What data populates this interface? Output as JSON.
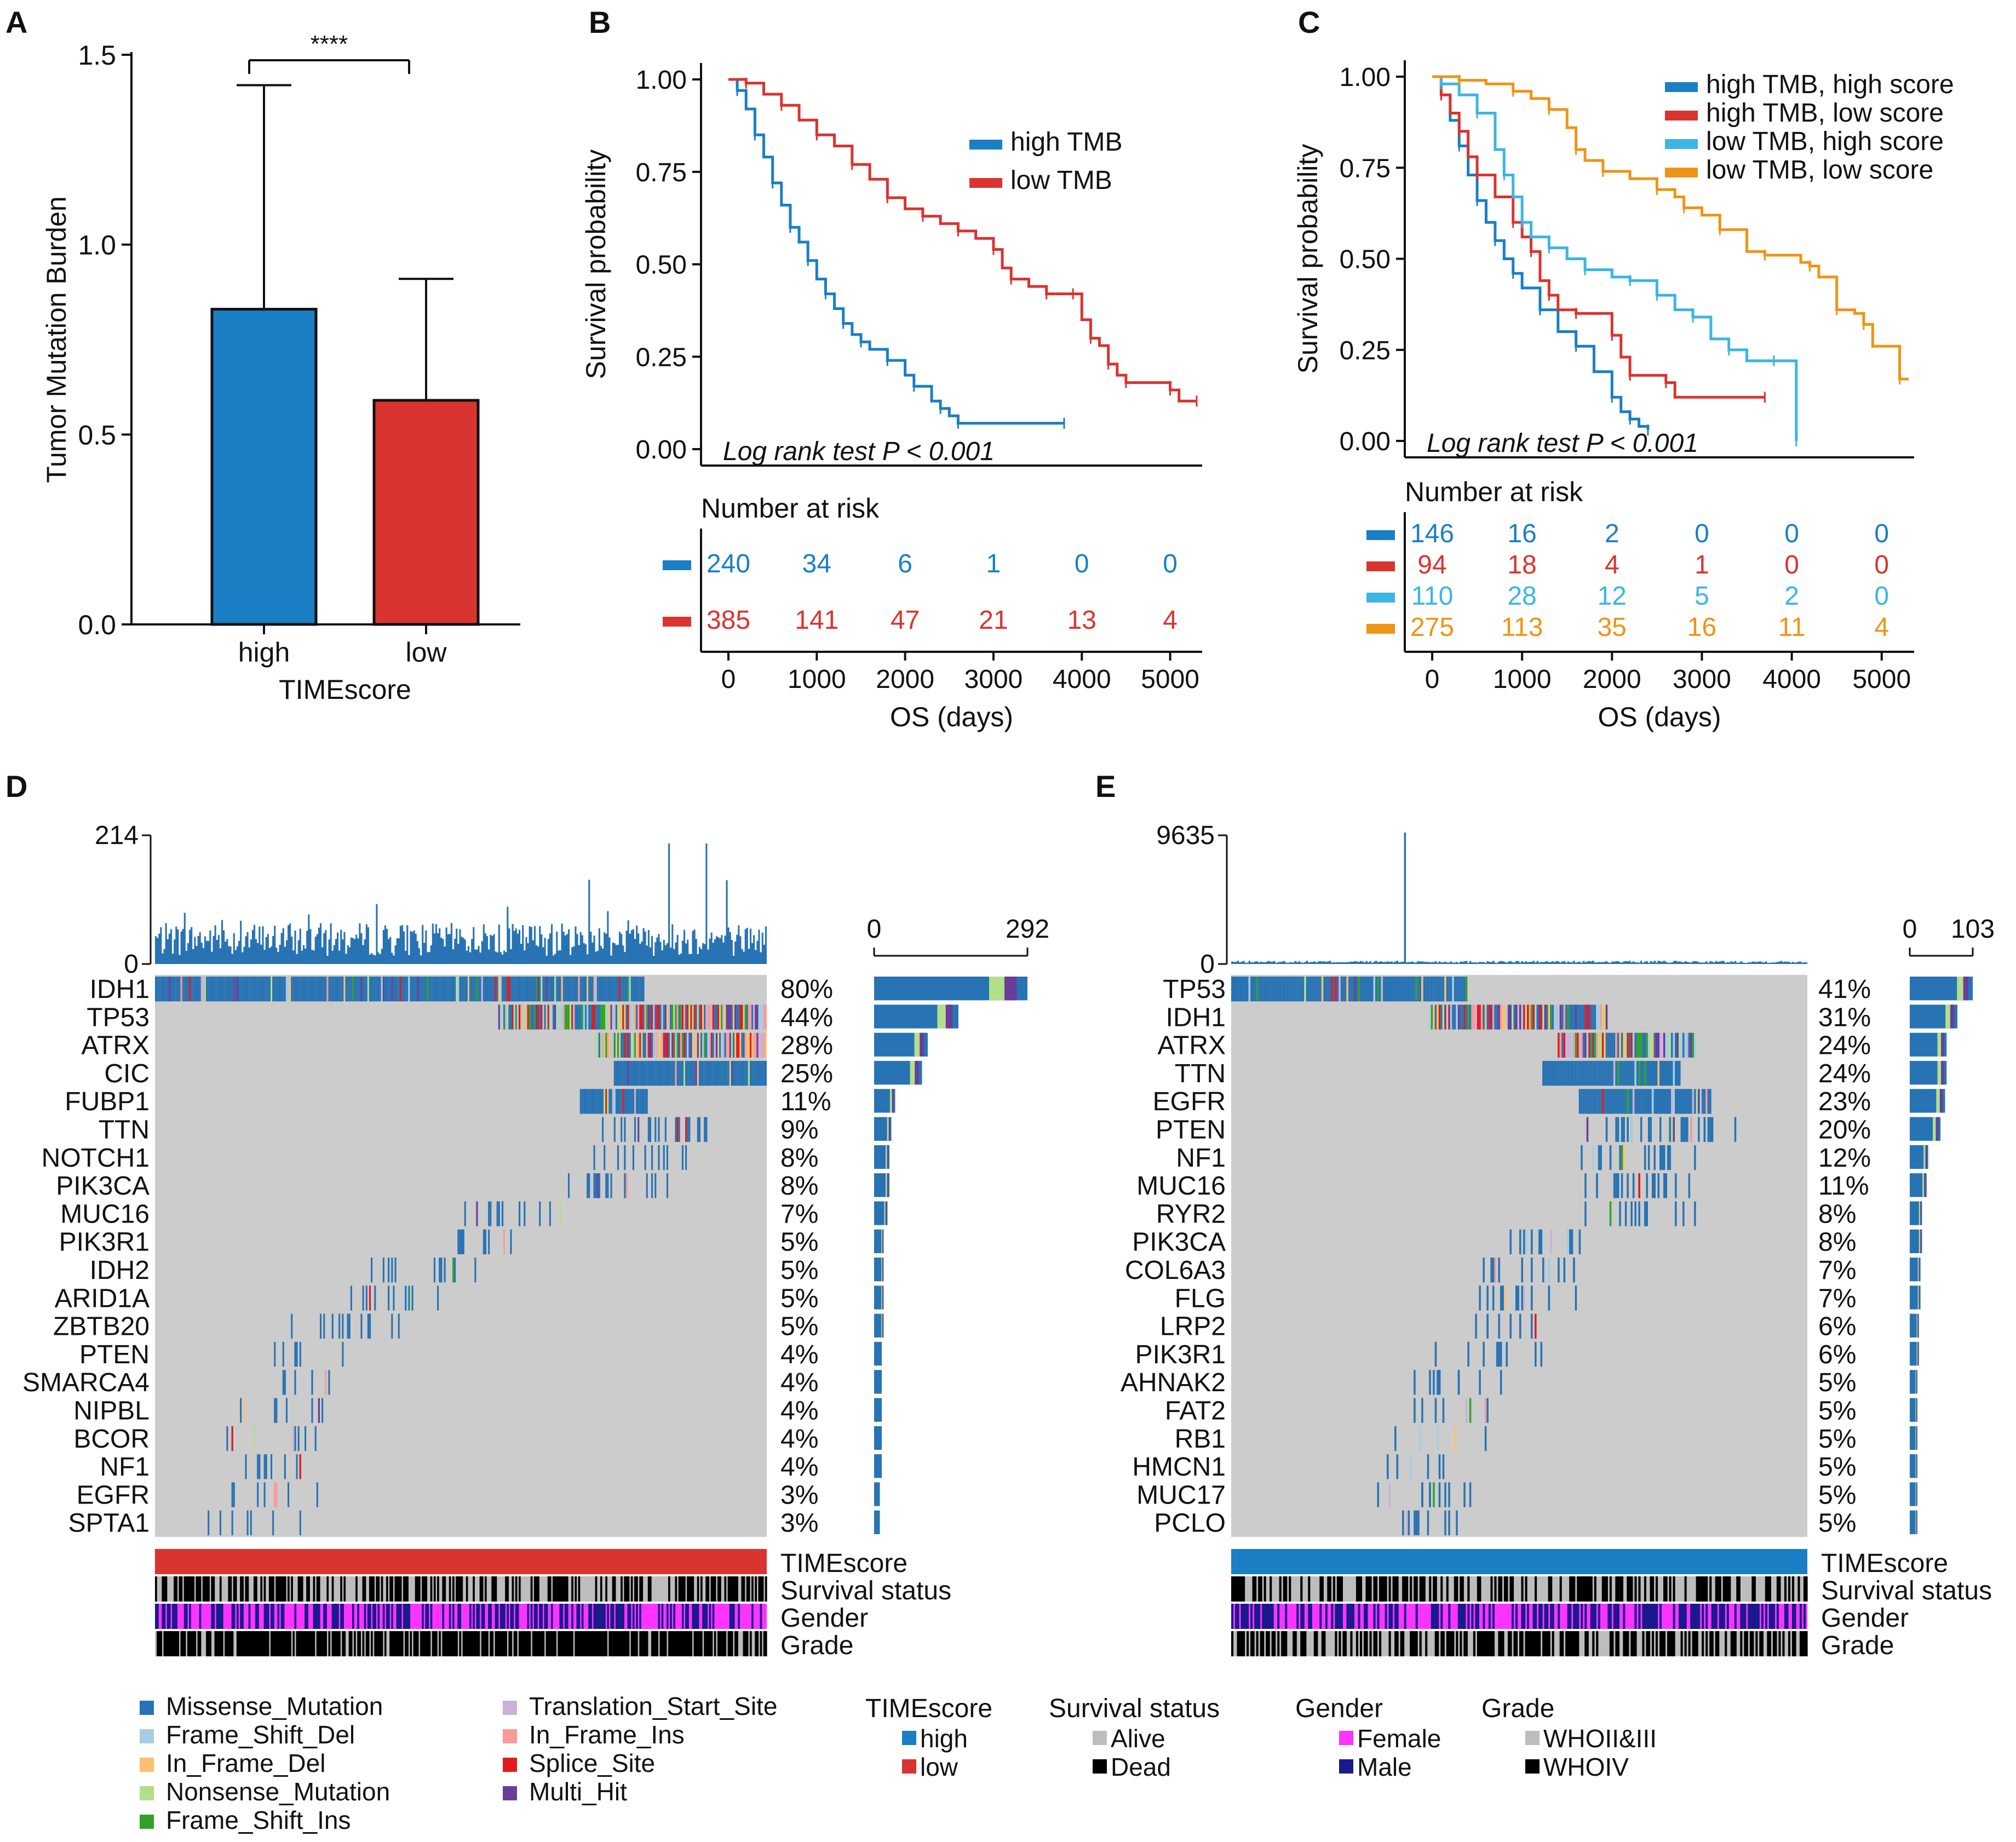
{
  "panels": {
    "A": "A",
    "B": "B",
    "C": "C",
    "D": "D",
    "E": "E"
  },
  "colors": {
    "high": "#1a7fc4",
    "low": "#d9342f",
    "lowhigh": "#3bb5e4",
    "lowlow": "#ef9416",
    "grey": "#cccccc",
    "missense": "#2873b3",
    "frame_shift_del": "#a6cee3",
    "in_frame_del": "#fdbf6f",
    "nonsense": "#b2df8a",
    "frame_shift_ins": "#33a02c",
    "translation_start": "#cab2d6",
    "in_frame_ins": "#fb9a99",
    "splice": "#e31a1c",
    "multi_hit": "#6a3d9a",
    "female": "#ff33ff",
    "male": "#1a1a8c",
    "alive": "#bdbdbd",
    "dead": "#000000"
  },
  "chart_data": [
    {
      "id": "A",
      "type": "bar",
      "ylabel": "Tumor Mutation Burden",
      "xlabel": "TIMEscore",
      "ylim": [
        0,
        1.5
      ],
      "yticks": [
        "0.0",
        "0.5",
        "1.0",
        "1.5"
      ],
      "ytick_values": [
        0,
        0.5,
        1.0,
        1.5
      ],
      "categories": [
        "high",
        "low"
      ],
      "values": [
        0.83,
        0.59
      ],
      "error_upper": [
        1.42,
        0.91
      ],
      "significance": "****"
    },
    {
      "id": "B",
      "type": "line",
      "ylabel": "Survival probability",
      "xlabel": "OS (days)",
      "xlim": [
        0,
        5300
      ],
      "ylim": [
        0,
        1
      ],
      "xticks": [
        "0",
        "1000",
        "2000",
        "3000",
        "4000",
        "5000"
      ],
      "xtick_values": [
        0,
        1000,
        2000,
        3000,
        4000,
        5000
      ],
      "yticks": [
        "0.00",
        "0.25",
        "0.50",
        "0.75",
        "1.00"
      ],
      "ytick_values": [
        0,
        0.25,
        0.5,
        0.75,
        1
      ],
      "annotation": "Log rank test P < 0.001",
      "series": [
        {
          "name": "high TMB",
          "color": "#1a7fc4",
          "points": [
            [
              0,
              1
            ],
            [
              100,
              0.97
            ],
            [
              200,
              0.92
            ],
            [
              300,
              0.85
            ],
            [
              400,
              0.79
            ],
            [
              500,
              0.72
            ],
            [
              600,
              0.66
            ],
            [
              700,
              0.6
            ],
            [
              800,
              0.56
            ],
            [
              900,
              0.51
            ],
            [
              1000,
              0.46
            ],
            [
              1100,
              0.42
            ],
            [
              1200,
              0.38
            ],
            [
              1300,
              0.34
            ],
            [
              1400,
              0.31
            ],
            [
              1500,
              0.29
            ],
            [
              1600,
              0.27
            ],
            [
              1800,
              0.24
            ],
            [
              2000,
              0.2
            ],
            [
              2100,
              0.17
            ],
            [
              2300,
              0.13
            ],
            [
              2400,
              0.11
            ],
            [
              2500,
              0.09
            ],
            [
              2600,
              0.07
            ],
            [
              3000,
              0.07
            ],
            [
              3800,
              0.07
            ]
          ]
        },
        {
          "name": "low TMB",
          "color": "#d9342f",
          "points": [
            [
              0,
              1
            ],
            [
              200,
              0.99
            ],
            [
              400,
              0.96
            ],
            [
              600,
              0.93
            ],
            [
              800,
              0.89
            ],
            [
              1000,
              0.85
            ],
            [
              1200,
              0.82
            ],
            [
              1400,
              0.77
            ],
            [
              1600,
              0.73
            ],
            [
              1800,
              0.68
            ],
            [
              2000,
              0.65
            ],
            [
              2200,
              0.63
            ],
            [
              2400,
              0.61
            ],
            [
              2600,
              0.59
            ],
            [
              2800,
              0.57
            ],
            [
              3000,
              0.54
            ],
            [
              3100,
              0.49
            ],
            [
              3200,
              0.46
            ],
            [
              3400,
              0.44
            ],
            [
              3600,
              0.42
            ],
            [
              3800,
              0.42
            ],
            [
              3900,
              0.42
            ],
            [
              4000,
              0.35
            ],
            [
              4100,
              0.3
            ],
            [
              4200,
              0.28
            ],
            [
              4300,
              0.23
            ],
            [
              4400,
              0.2
            ],
            [
              4500,
              0.18
            ],
            [
              4700,
              0.18
            ],
            [
              5000,
              0.16
            ],
            [
              5100,
              0.13
            ],
            [
              5300,
              0.13
            ]
          ]
        }
      ],
      "risk_title": "Number at risk",
      "risk": [
        {
          "color": "#1a7fc4",
          "values": [
            "240",
            "34",
            "6",
            "1",
            "0",
            "0"
          ]
        },
        {
          "color": "#d9342f",
          "values": [
            "385",
            "141",
            "47",
            "21",
            "13",
            "4"
          ]
        }
      ]
    },
    {
      "id": "C",
      "type": "line",
      "ylabel": "Survival probability",
      "xlabel": "OS (days)",
      "xlim": [
        0,
        5300
      ],
      "ylim": [
        0,
        1
      ],
      "xticks": [
        "0",
        "1000",
        "2000",
        "3000",
        "4000",
        "5000"
      ],
      "xtick_values": [
        0,
        1000,
        2000,
        3000,
        4000,
        5000
      ],
      "yticks": [
        "0.00",
        "0.25",
        "0.50",
        "0.75",
        "1.00"
      ],
      "ytick_values": [
        0,
        0.25,
        0.5,
        0.75,
        1
      ],
      "annotation": "Log rank test P < 0.001",
      "series": [
        {
          "name": "high TMB, high score",
          "color": "#1a7fc4",
          "points": [
            [
              0,
              1
            ],
            [
              100,
              0.95
            ],
            [
              200,
              0.88
            ],
            [
              300,
              0.81
            ],
            [
              400,
              0.73
            ],
            [
              500,
              0.66
            ],
            [
              600,
              0.6
            ],
            [
              700,
              0.55
            ],
            [
              800,
              0.5
            ],
            [
              900,
              0.46
            ],
            [
              1000,
              0.42
            ],
            [
              1200,
              0.36
            ],
            [
              1400,
              0.3
            ],
            [
              1600,
              0.26
            ],
            [
              1800,
              0.19
            ],
            [
              2000,
              0.12
            ],
            [
              2100,
              0.08
            ],
            [
              2200,
              0.06
            ],
            [
              2300,
              0.04
            ],
            [
              2400,
              0.03
            ]
          ]
        },
        {
          "name": "high TMB, low score",
          "color": "#d9342f",
          "points": [
            [
              0,
              1
            ],
            [
              100,
              0.95
            ],
            [
              200,
              0.9
            ],
            [
              300,
              0.85
            ],
            [
              400,
              0.78
            ],
            [
              500,
              0.73
            ],
            [
              700,
              0.67
            ],
            [
              900,
              0.6
            ],
            [
              1000,
              0.56
            ],
            [
              1100,
              0.52
            ],
            [
              1200,
              0.44
            ],
            [
              1300,
              0.4
            ],
            [
              1400,
              0.36
            ],
            [
              1600,
              0.35
            ],
            [
              1900,
              0.35
            ],
            [
              2000,
              0.29
            ],
            [
              2100,
              0.23
            ],
            [
              2200,
              0.18
            ],
            [
              2500,
              0.18
            ],
            [
              2600,
              0.16
            ],
            [
              2700,
              0.12
            ],
            [
              3700,
              0.12
            ]
          ]
        },
        {
          "name": "low TMB, high score",
          "color": "#3bb5e4",
          "points": [
            [
              0,
              1
            ],
            [
              100,
              0.98
            ],
            [
              300,
              0.95
            ],
            [
              500,
              0.9
            ],
            [
              700,
              0.8
            ],
            [
              800,
              0.73
            ],
            [
              900,
              0.67
            ],
            [
              1000,
              0.6
            ],
            [
              1100,
              0.56
            ],
            [
              1300,
              0.53
            ],
            [
              1500,
              0.5
            ],
            [
              1700,
              0.47
            ],
            [
              2000,
              0.45
            ],
            [
              2200,
              0.44
            ],
            [
              2400,
              0.44
            ],
            [
              2500,
              0.4
            ],
            [
              2700,
              0.36
            ],
            [
              2900,
              0.34
            ],
            [
              3100,
              0.28
            ],
            [
              3300,
              0.25
            ],
            [
              3500,
              0.22
            ],
            [
              3800,
              0.22
            ],
            [
              4000,
              0.22
            ],
            [
              4050,
              0
            ]
          ]
        },
        {
          "name": "low TMB, low score",
          "color": "#ef9416",
          "points": [
            [
              0,
              1
            ],
            [
              300,
              0.99
            ],
            [
              600,
              0.98
            ],
            [
              900,
              0.96
            ],
            [
              1100,
              0.94
            ],
            [
              1300,
              0.91
            ],
            [
              1500,
              0.86
            ],
            [
              1600,
              0.8
            ],
            [
              1700,
              0.77
            ],
            [
              1900,
              0.74
            ],
            [
              2200,
              0.72
            ],
            [
              2500,
              0.69
            ],
            [
              2700,
              0.67
            ],
            [
              2800,
              0.64
            ],
            [
              3000,
              0.62
            ],
            [
              3200,
              0.58
            ],
            [
              3500,
              0.52
            ],
            [
              3700,
              0.51
            ],
            [
              4100,
              0.49
            ],
            [
              4200,
              0.48
            ],
            [
              4300,
              0.45
            ],
            [
              4500,
              0.36
            ],
            [
              4700,
              0.35
            ],
            [
              4800,
              0.32
            ],
            [
              4900,
              0.26
            ],
            [
              5200,
              0.17
            ],
            [
              5300,
              0.17
            ]
          ]
        }
      ],
      "risk_title": "Number at risk",
      "risk": [
        {
          "color": "#1a7fc4",
          "values": [
            "146",
            "16",
            "2",
            "0",
            "0",
            "0"
          ]
        },
        {
          "color": "#d9342f",
          "values": [
            "94",
            "18",
            "4",
            "1",
            "0",
            "0"
          ]
        },
        {
          "color": "#3bb5e4",
          "values": [
            "110",
            "28",
            "12",
            "5",
            "2",
            "0"
          ]
        },
        {
          "color": "#ef9416",
          "values": [
            "275",
            "113",
            "35",
            "16",
            "11",
            "4"
          ]
        }
      ]
    },
    {
      "id": "D",
      "type": "heatmap",
      "tmb_max": "214",
      "tmb_min": "0",
      "bar_min": "0",
      "bar_max": "292",
      "timescore_color": "#d9342f",
      "genes": [
        "IDH1",
        "TP53",
        "ATRX",
        "CIC",
        "FUBP1",
        "TTN",
        "NOTCH1",
        "PIK3CA",
        "MUC16",
        "PIK3R1",
        "IDH2",
        "ARID1A",
        "ZBTB20",
        "PTEN",
        "SMARCA4",
        "NIPBL",
        "BCOR",
        "NF1",
        "EGFR",
        "SPTA1"
      ],
      "percents": [
        "80%",
        "44%",
        "28%",
        "25%",
        "11%",
        "9%",
        "8%",
        "8%",
        "7%",
        "5%",
        "5%",
        "5%",
        "5%",
        "4%",
        "4%",
        "4%",
        "4%",
        "4%",
        "3%",
        "3%"
      ],
      "freq": [
        80,
        44,
        28,
        25,
        11,
        9,
        8,
        8,
        7,
        5,
        5,
        5,
        5,
        4,
        4,
        4,
        4,
        4,
        3,
        3
      ],
      "tracks": [
        "TIMEscore",
        "Survival status",
        "Gender",
        "Grade"
      ]
    },
    {
      "id": "E",
      "type": "heatmap",
      "tmb_max": "9635",
      "tmb_min": "0",
      "bar_min": "0",
      "bar_max": "103",
      "timescore_color": "#1a7fc4",
      "genes": [
        "TP53",
        "IDH1",
        "ATRX",
        "TTN",
        "EGFR",
        "PTEN",
        "NF1",
        "MUC16",
        "RYR2",
        "PIK3CA",
        "COL6A3",
        "FLG",
        "LRP2",
        "PIK3R1",
        "AHNAK2",
        "FAT2",
        "RB1",
        "HMCN1",
        "MUC17",
        "PCLO"
      ],
      "percents": [
        "41%",
        "31%",
        "24%",
        "24%",
        "23%",
        "20%",
        "12%",
        "11%",
        "8%",
        "8%",
        "7%",
        "7%",
        "6%",
        "6%",
        "5%",
        "5%",
        "5%",
        "5%",
        "5%",
        "5%"
      ],
      "freq": [
        41,
        31,
        24,
        24,
        23,
        20,
        12,
        11,
        8,
        8,
        7,
        7,
        6,
        6,
        5,
        5,
        5,
        5,
        5,
        5
      ],
      "tracks": [
        "TIMEscore",
        "Survival status",
        "Gender",
        "Grade"
      ]
    }
  ],
  "legend": {
    "mutations": [
      {
        "label": "Missense_Mutation",
        "color": "#2873b3"
      },
      {
        "label": "Frame_Shift_Del",
        "color": "#a6cee3"
      },
      {
        "label": "In_Frame_Del",
        "color": "#fdbf6f"
      },
      {
        "label": "Nonsense_Mutation",
        "color": "#b2df8a"
      },
      {
        "label": "Frame_Shift_Ins",
        "color": "#33a02c"
      },
      {
        "label": "Translation_Start_Site",
        "color": "#cab2d6"
      },
      {
        "label": "In_Frame_Ins",
        "color": "#fb9a99"
      },
      {
        "label": "Splice_Site",
        "color": "#e31a1c"
      },
      {
        "label": "Multi_Hit",
        "color": "#6a3d9a"
      }
    ],
    "groups": [
      {
        "title": "TIMEscore",
        "items": [
          {
            "label": "high",
            "color": "#1a7fc4"
          },
          {
            "label": "low",
            "color": "#d9342f"
          }
        ]
      },
      {
        "title": "Survival status",
        "items": [
          {
            "label": "Alive",
            "color": "#bdbdbd"
          },
          {
            "label": "Dead",
            "color": "#000000"
          }
        ]
      },
      {
        "title": "Gender",
        "items": [
          {
            "label": "Female",
            "color": "#ff33ff"
          },
          {
            "label": "Male",
            "color": "#1a1a8c"
          }
        ]
      },
      {
        "title": "Grade",
        "items": [
          {
            "label": "WHOII&III",
            "color": "#bdbdbd"
          },
          {
            "label": "WHOIV",
            "color": "#000000"
          }
        ]
      }
    ]
  }
}
